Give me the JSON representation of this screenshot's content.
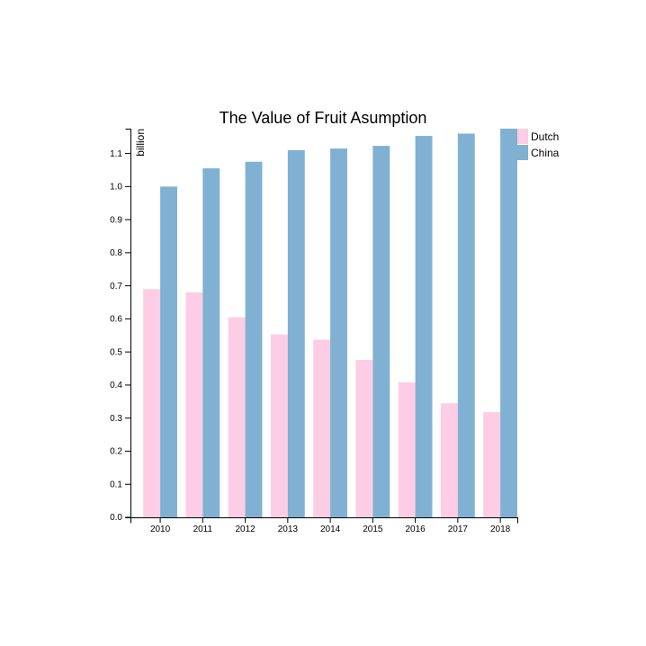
{
  "chart_data": {
    "type": "bar",
    "title": "The Value of Fruit Asumption",
    "xlabel": "",
    "ylabel": "billion",
    "categories": [
      "2010",
      "2011",
      "2012",
      "2013",
      "2014",
      "2015",
      "2016",
      "2017",
      "2018"
    ],
    "series": [
      {
        "name": "Dutch",
        "color": "#fccde5",
        "values": [
          0.69,
          0.68,
          0.605,
          0.553,
          0.537,
          0.476,
          0.408,
          0.345,
          0.318
        ]
      },
      {
        "name": "China",
        "color": "#80b1d3",
        "values": [
          1.0,
          1.055,
          1.075,
          1.11,
          1.115,
          1.123,
          1.153,
          1.16,
          1.175
        ]
      }
    ],
    "ylim": [
      0,
      1.175
    ],
    "yticks": [
      "0.0",
      "0.1",
      "0.2",
      "0.3",
      "0.4",
      "0.5",
      "0.6",
      "0.7",
      "0.8",
      "0.9",
      "1.0",
      "1.1"
    ],
    "grid": false,
    "legend_position": "top-right"
  }
}
